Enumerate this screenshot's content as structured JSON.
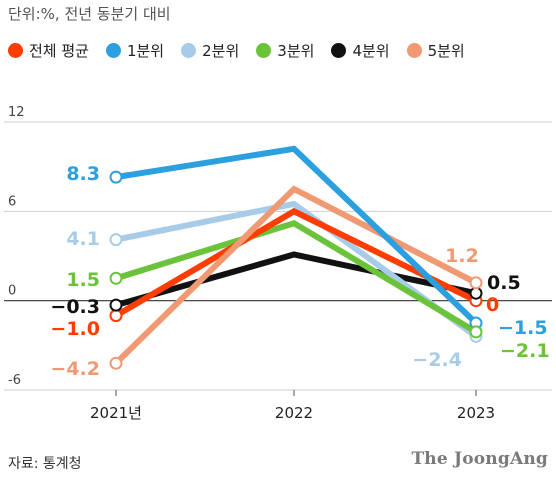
{
  "header": {
    "unit_note": "단위:%, 전년 동분기 대비"
  },
  "footer": {
    "source": "자료: 통계청",
    "brand": "The JoongAng"
  },
  "chart_data": {
    "type": "line",
    "title": "",
    "xlabel": "",
    "ylabel": "",
    "categories": [
      "2021년",
      "2022",
      "2023"
    ],
    "ylim": [
      -6,
      12
    ],
    "yticks": [
      12,
      6,
      0,
      -6
    ],
    "yticklabels": [
      "12",
      "6",
      "0",
      "-6"
    ],
    "grid": true,
    "legend_position": "top",
    "series": [
      {
        "name": "전체 평균",
        "color": "#ff3d00",
        "values": [
          -1.0,
          6.0,
          0.0
        ],
        "labels": [
          "−1.0",
          "",
          "0"
        ]
      },
      {
        "name": "1분위",
        "color": "#2c9fdf",
        "values": [
          8.3,
          10.2,
          -1.5
        ],
        "labels": [
          "8.3",
          "",
          "−1.5"
        ]
      },
      {
        "name": "2분위",
        "color": "#a8cce8",
        "values": [
          4.1,
          6.5,
          -2.4
        ],
        "labels": [
          "4.1",
          "",
          "−2.4"
        ]
      },
      {
        "name": "3분위",
        "color": "#6ac33a",
        "values": [
          1.5,
          5.2,
          -2.1
        ],
        "labels": [
          "1.5",
          "",
          "−2.1"
        ]
      },
      {
        "name": "4분위",
        "color": "#111111",
        "values": [
          -0.3,
          3.1,
          0.5
        ],
        "labels": [
          "−0.3",
          "",
          "0.5"
        ]
      },
      {
        "name": "5분위",
        "color": "#ef9a72",
        "values": [
          -4.2,
          7.5,
          1.2
        ],
        "labels": [
          "−4.2",
          "",
          "1.2"
        ]
      }
    ]
  }
}
